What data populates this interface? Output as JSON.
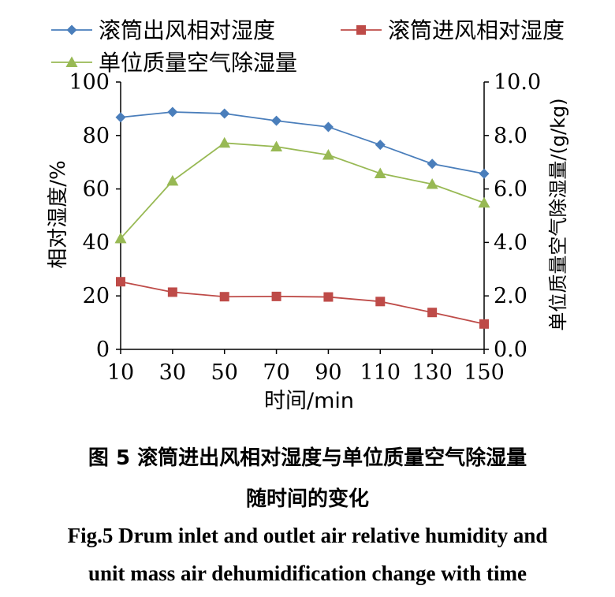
{
  "chart_data": {
    "type": "line",
    "x": [
      10,
      30,
      50,
      70,
      90,
      110,
      130,
      150
    ],
    "xlabel": "时间/min",
    "x_ticks": [
      "10",
      "30",
      "50",
      "70",
      "90",
      "110",
      "130",
      "150"
    ],
    "ylabel_left": "相对湿度/%",
    "ylim_left": [
      0,
      100
    ],
    "y_ticks_left": [
      "0",
      "20",
      "40",
      "60",
      "80",
      "100"
    ],
    "ylabel_right": "单位质量空气除湿量/(g/kg)",
    "ylim_right": [
      0,
      10
    ],
    "y_ticks_right": [
      "0.0",
      "2.0",
      "4.0",
      "6.0",
      "8.0",
      "10.0"
    ],
    "grid": false,
    "legend_position": "top",
    "series": [
      {
        "name": "滚筒出风相对湿度",
        "axis": "left",
        "marker": "diamond",
        "color": "#4A7EBB",
        "values": [
          86.8,
          88.8,
          88.2,
          85.5,
          83.2,
          76.5,
          69.4,
          65.7
        ]
      },
      {
        "name": "滚筒进风相对湿度",
        "axis": "left",
        "marker": "square",
        "color": "#BE4B48",
        "values": [
          25.3,
          21.4,
          19.7,
          19.8,
          19.6,
          17.9,
          13.8,
          9.5
        ]
      },
      {
        "name": "单位质量空气除湿量",
        "axis": "right",
        "marker": "triangle",
        "color": "#98B954",
        "values": [
          4.15,
          6.3,
          7.72,
          7.58,
          7.27,
          6.58,
          6.18,
          5.48
        ]
      }
    ]
  },
  "caption": {
    "cn_line1": "图 5 滚筒进出风相对湿度与单位质量空气除湿量",
    "cn_line2": "随时间的变化",
    "en_line1": "Fig.5 Drum inlet and outlet air relative humidity and",
    "en_line2": "unit mass air dehumidification change with time"
  }
}
